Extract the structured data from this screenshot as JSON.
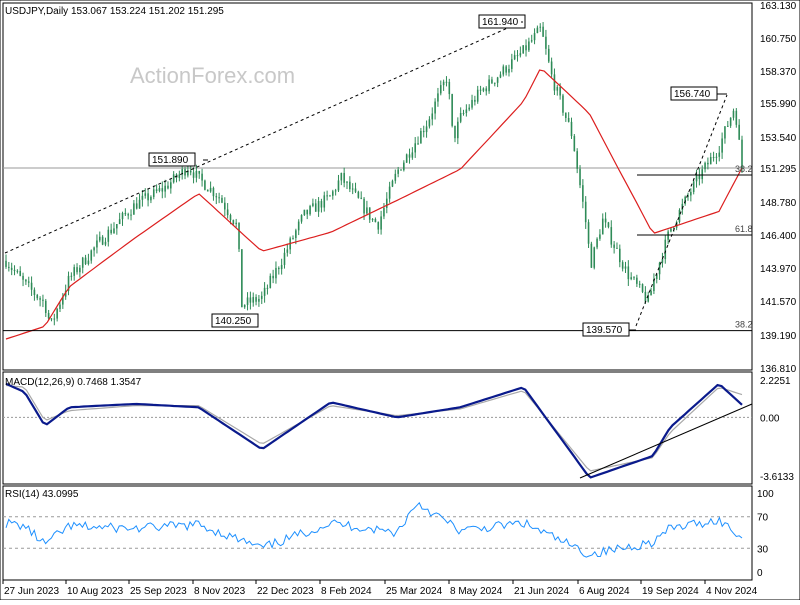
{
  "header": {
    "symbol_line": "USDJPY,Daily  153.067 153.224 151.202 151.295",
    "watermark": "ActionForex.com"
  },
  "colors": {
    "candle": "#2e8b57",
    "ma": "#dc1e1e",
    "macd": "#0a1a8c",
    "signal": "#a8a8a8",
    "rsi": "#1e90ff",
    "guide": "#000000",
    "price_tag": "#000000"
  },
  "chart_data": [
    {
      "type": "line",
      "panel": "price",
      "title": "USDJPY,Daily  153.067 153.224 151.202 151.295",
      "y_ticks": [
        "163.130",
        "160.750",
        "158.370",
        "155.990",
        "153.540",
        "151.295",
        "148.780",
        "146.400",
        "143.970",
        "141.570",
        "139.190",
        "136.810"
      ],
      "ylim": [
        136.81,
        163.13
      ],
      "x_ticks": [
        "27 Jun 2023",
        "10 Aug 2023",
        "25 Sep 2023",
        "8 Nov 2023",
        "22 Dec 2023",
        "8 Feb 2024",
        "25 Mar 2024",
        "8 May 2024",
        "21 Jun 2024",
        "6 Aug 2024",
        "19 Sep 2024",
        "4 Nov 2024"
      ],
      "last_price": "151.295",
      "series": [
        {
          "name": "",
          "kind": "close",
          "x": [
            "27 Jun 2023",
            "10 Jul 2023",
            "24 Jul 2023",
            "28 Jul 2023",
            "10 Aug 2023",
            "1 Sep 2023",
            "25 Sep 2023",
            "15 Oct 2023",
            "1 Nov 2023",
            "8 Nov 2023",
            "22 Nov 2023",
            "5 Dec 2023",
            "8 Dec 2023",
            "22 Dec 2023",
            "5 Jan 2024",
            "20 Jan 2024",
            "8 Feb 2024",
            "15 Feb 2024",
            "8 Mar 2024",
            "12 Mar 2024",
            "25 Mar 2024",
            "15 Apr 2024",
            "29 Apr 2024",
            "3 May 2024",
            "8 May 2024",
            "21 May 2024",
            "21 Jun 2024",
            "3 Jul 2024",
            "11 Jul 2024",
            "25 Jul 2024",
            "5 Aug 2024",
            "6 Aug 2024",
            "15 Aug 2024",
            "1 Sep 2024",
            "16 Sep 2024",
            "19 Sep 2024",
            "1 Oct 2024",
            "20 Oct 2024",
            "4 Nov 2024",
            "15 Nov 2024",
            "20 Nov 2024"
          ],
          "values": [
            144.5,
            142.8,
            141.4,
            139.8,
            143.2,
            146.0,
            148.6,
            149.8,
            151.4,
            150.5,
            149.2,
            147.0,
            141.3,
            141.8,
            144.6,
            147.8,
            149.2,
            150.6,
            147.5,
            147.2,
            151.0,
            154.6,
            158.0,
            153.3,
            154.9,
            156.7,
            159.8,
            161.4,
            157.8,
            153.6,
            146.2,
            143.9,
            147.5,
            143.6,
            141.5,
            142.9,
            146.8,
            150.5,
            152.8,
            155.8,
            151.295
          ]
        },
        {
          "name": "",
          "kind": "moving-average",
          "x": [
            "27 Jun 2023",
            "24 Jul 2023",
            "10 Aug 2023",
            "25 Sep 2023",
            "8 Nov 2023",
            "22 Dec 2023",
            "8 Feb 2024",
            "25 Mar 2024",
            "8 May 2024",
            "21 Jun 2024",
            "3 Jul 2024",
            "6 Aug 2024",
            "19 Sep 2024",
            "4 Nov 2024",
            "20 Nov 2024"
          ],
          "values": [
            138.9,
            139.8,
            142.6,
            146.2,
            149.4,
            145.2,
            146.6,
            148.9,
            151.2,
            156.1,
            158.6,
            155.2,
            146.5,
            148.1,
            151.3
          ]
        }
      ],
      "annotations": [
        "161.940",
        "151.890",
        "140.250",
        "139.570",
        "156.740",
        "38.2",
        "61.8",
        "38.2"
      ]
    },
    {
      "type": "line",
      "panel": "macd",
      "title": "MACD(12,26,9) 0.7468 1.3547",
      "y_ticks": [
        "2.2251",
        "0.00",
        "-3.6133"
      ],
      "ylim": [
        -3.6133,
        2.2251
      ],
      "series": [
        {
          "name": "",
          "kind": "macd",
          "x": [
            "27 Jun 2023",
            "10 Jul 2023",
            "24 Jul 2023",
            "10 Aug 2023",
            "25 Sep 2023",
            "8 Nov 2023",
            "22 Dec 2023",
            "8 Feb 2024",
            "25 Mar 2024",
            "8 May 2024",
            "21 Jun 2024",
            "6 Aug 2024",
            "19 Sep 2024",
            "1 Oct 2024",
            "4 Nov 2024",
            "20 Nov 2024"
          ],
          "values": [
            2.0,
            1.5,
            -0.5,
            0.6,
            0.8,
            0.6,
            -1.9,
            0.9,
            0.0,
            0.6,
            1.8,
            -3.6,
            -2.3,
            -0.6,
            2.0,
            0.7468
          ]
        },
        {
          "name": "",
          "kind": "signal",
          "x": [
            "27 Jun 2023",
            "10 Jul 2023",
            "24 Jul 2023",
            "10 Aug 2023",
            "25 Sep 2023",
            "8 Nov 2023",
            "22 Dec 2023",
            "8 Feb 2024",
            "25 Mar 2024",
            "8 May 2024",
            "21 Jun 2024",
            "6 Aug 2024",
            "19 Sep 2024",
            "1 Oct 2024",
            "4 Nov 2024",
            "20 Nov 2024"
          ],
          "values": [
            1.9,
            1.8,
            -0.2,
            0.4,
            0.7,
            0.7,
            -1.6,
            0.7,
            0.1,
            0.5,
            1.6,
            -3.2,
            -2.4,
            -0.9,
            1.8,
            1.3547
          ]
        }
      ]
    },
    {
      "type": "line",
      "panel": "rsi",
      "title": "RSI(14) 43.0995",
      "y_ticks": [
        "100",
        "70",
        "30",
        "0"
      ],
      "ylim": [
        0,
        100
      ],
      "series": [
        {
          "name": "",
          "kind": "rsi",
          "x": [
            "27 Jun 2023",
            "10 Jul 2023",
            "24 Jul 2023",
            "10 Aug 2023",
            "25 Sep 2023",
            "8 Nov 2023",
            "22 Dec 2023",
            "8 Feb 2024",
            "25 Mar 2024",
            "8 Apr 2024",
            "8 May 2024",
            "21 Jun 2024",
            "6 Aug 2024",
            "19 Sep 2024",
            "1 Oct 2024",
            "4 Nov 2024",
            "20 Nov 2024"
          ],
          "values": [
            62,
            58,
            35,
            58,
            55,
            60,
            30,
            62,
            50,
            88,
            52,
            62,
            22,
            38,
            55,
            66,
            43.0995
          ]
        }
      ]
    }
  ]
}
